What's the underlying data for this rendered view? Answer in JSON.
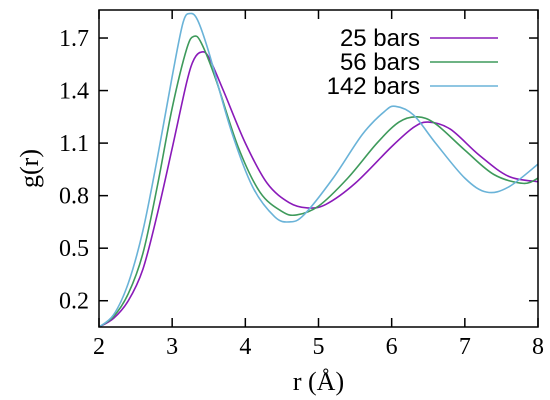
{
  "chart_data": {
    "type": "line",
    "xlabel": "r (Å)",
    "ylabel": "g(r)",
    "xlim": [
      2,
      8
    ],
    "ylim": [
      0.05,
      1.86
    ],
    "x_ticks": [
      2,
      3,
      4,
      5,
      6,
      7,
      8
    ],
    "y_ticks": [
      0.2,
      0.5,
      0.8,
      1.1,
      1.4,
      1.7
    ],
    "grid": false,
    "legend_position": "top-right",
    "series": [
      {
        "name": "25 bars",
        "color": "#8a1ab9",
        "points": [
          [
            2.0,
            0.05
          ],
          [
            2.2,
            0.1
          ],
          [
            2.4,
            0.2
          ],
          [
            2.6,
            0.38
          ],
          [
            2.8,
            0.7
          ],
          [
            3.0,
            1.07
          ],
          [
            3.2,
            1.45
          ],
          [
            3.3,
            1.58
          ],
          [
            3.4,
            1.62
          ],
          [
            3.5,
            1.59
          ],
          [
            3.7,
            1.4
          ],
          [
            4.0,
            1.1
          ],
          [
            4.3,
            0.87
          ],
          [
            4.6,
            0.76
          ],
          [
            4.85,
            0.73
          ],
          [
            5.1,
            0.75
          ],
          [
            5.5,
            0.87
          ],
          [
            6.0,
            1.08
          ],
          [
            6.3,
            1.19
          ],
          [
            6.5,
            1.22
          ],
          [
            6.8,
            1.18
          ],
          [
            7.2,
            1.03
          ],
          [
            7.6,
            0.91
          ],
          [
            8.0,
            0.88
          ]
        ]
      },
      {
        "name": "56 bars",
        "color": "#3e9a5b",
        "points": [
          [
            2.0,
            0.05
          ],
          [
            2.2,
            0.11
          ],
          [
            2.4,
            0.24
          ],
          [
            2.6,
            0.47
          ],
          [
            2.8,
            0.86
          ],
          [
            3.0,
            1.3
          ],
          [
            3.2,
            1.64
          ],
          [
            3.3,
            1.71
          ],
          [
            3.4,
            1.67
          ],
          [
            3.6,
            1.46
          ],
          [
            3.9,
            1.08
          ],
          [
            4.2,
            0.82
          ],
          [
            4.5,
            0.71
          ],
          [
            4.7,
            0.69
          ],
          [
            5.0,
            0.74
          ],
          [
            5.4,
            0.9
          ],
          [
            5.8,
            1.1
          ],
          [
            6.1,
            1.22
          ],
          [
            6.35,
            1.25
          ],
          [
            6.6,
            1.21
          ],
          [
            7.0,
            1.06
          ],
          [
            7.4,
            0.92
          ],
          [
            7.8,
            0.87
          ],
          [
            8.0,
            0.9
          ]
        ]
      },
      {
        "name": "142 bars",
        "color": "#6ab3d8",
        "points": [
          [
            2.0,
            0.05
          ],
          [
            2.2,
            0.12
          ],
          [
            2.4,
            0.3
          ],
          [
            2.6,
            0.6
          ],
          [
            2.8,
            1.02
          ],
          [
            3.0,
            1.48
          ],
          [
            3.15,
            1.79
          ],
          [
            3.25,
            1.84
          ],
          [
            3.35,
            1.8
          ],
          [
            3.5,
            1.62
          ],
          [
            3.8,
            1.18
          ],
          [
            4.1,
            0.85
          ],
          [
            4.4,
            0.68
          ],
          [
            4.6,
            0.65
          ],
          [
            4.8,
            0.69
          ],
          [
            5.2,
            0.9
          ],
          [
            5.6,
            1.15
          ],
          [
            5.9,
            1.28
          ],
          [
            6.05,
            1.31
          ],
          [
            6.3,
            1.26
          ],
          [
            6.6,
            1.1
          ],
          [
            7.0,
            0.9
          ],
          [
            7.3,
            0.82
          ],
          [
            7.6,
            0.85
          ],
          [
            8.0,
            0.98
          ]
        ]
      }
    ]
  }
}
